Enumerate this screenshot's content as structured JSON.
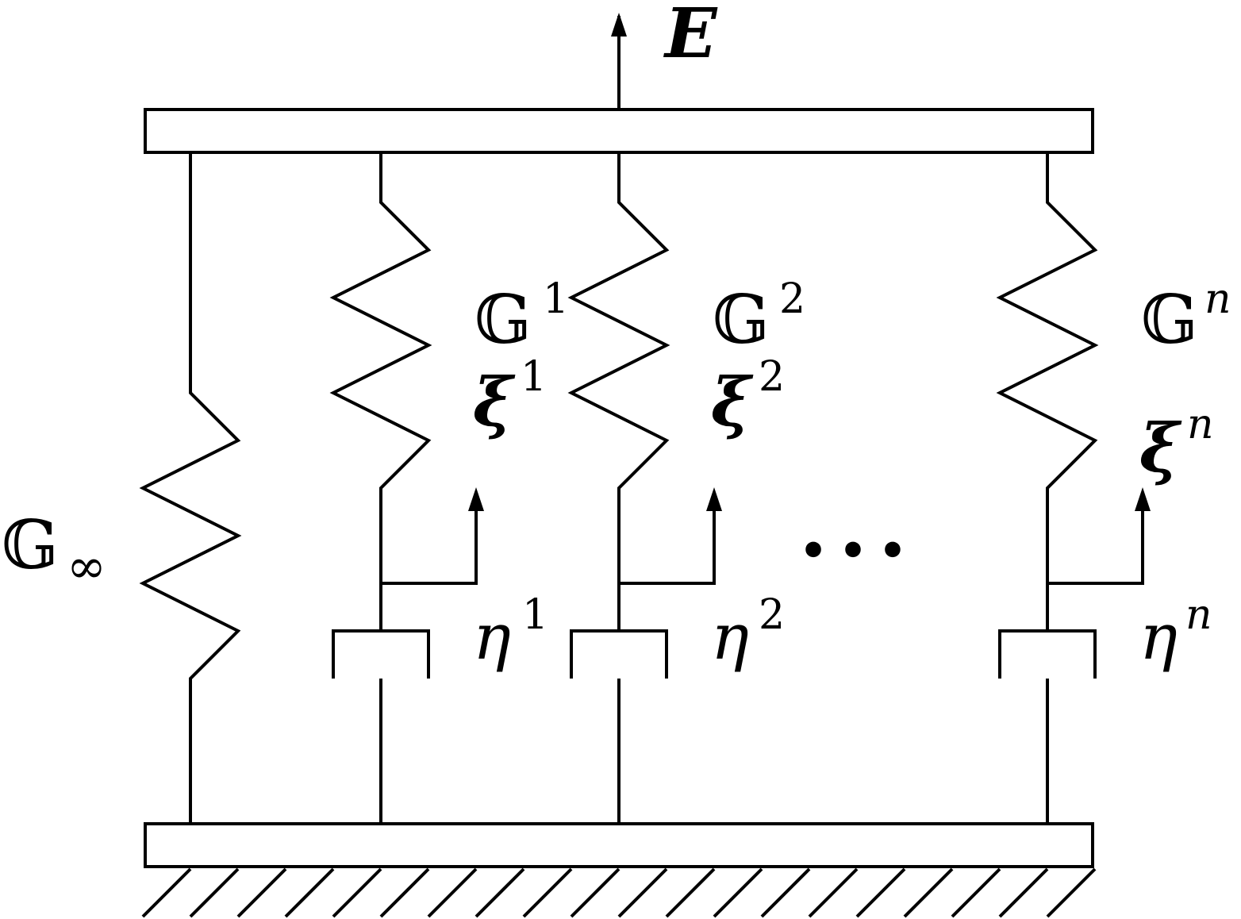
{
  "diagram": {
    "strain_label": "E",
    "equilibrium_spring": {
      "label": "𝔾",
      "subscript": "∞"
    },
    "branches": [
      {
        "stiffness": "𝔾",
        "stiffness_sup": "1",
        "internal_var": "ξ",
        "internal_var_sup": "1",
        "viscosity": "η",
        "viscosity_sup": "1"
      },
      {
        "stiffness": "𝔾",
        "stiffness_sup": "2",
        "internal_var": "ξ",
        "internal_var_sup": "2",
        "viscosity": "η",
        "viscosity_sup": "2"
      },
      {
        "stiffness": "𝔾",
        "stiffness_sup": "n",
        "internal_var": "ξ",
        "internal_var_sup": "n",
        "viscosity": "η",
        "viscosity_sup": "n"
      }
    ],
    "ellipsis": "…"
  }
}
